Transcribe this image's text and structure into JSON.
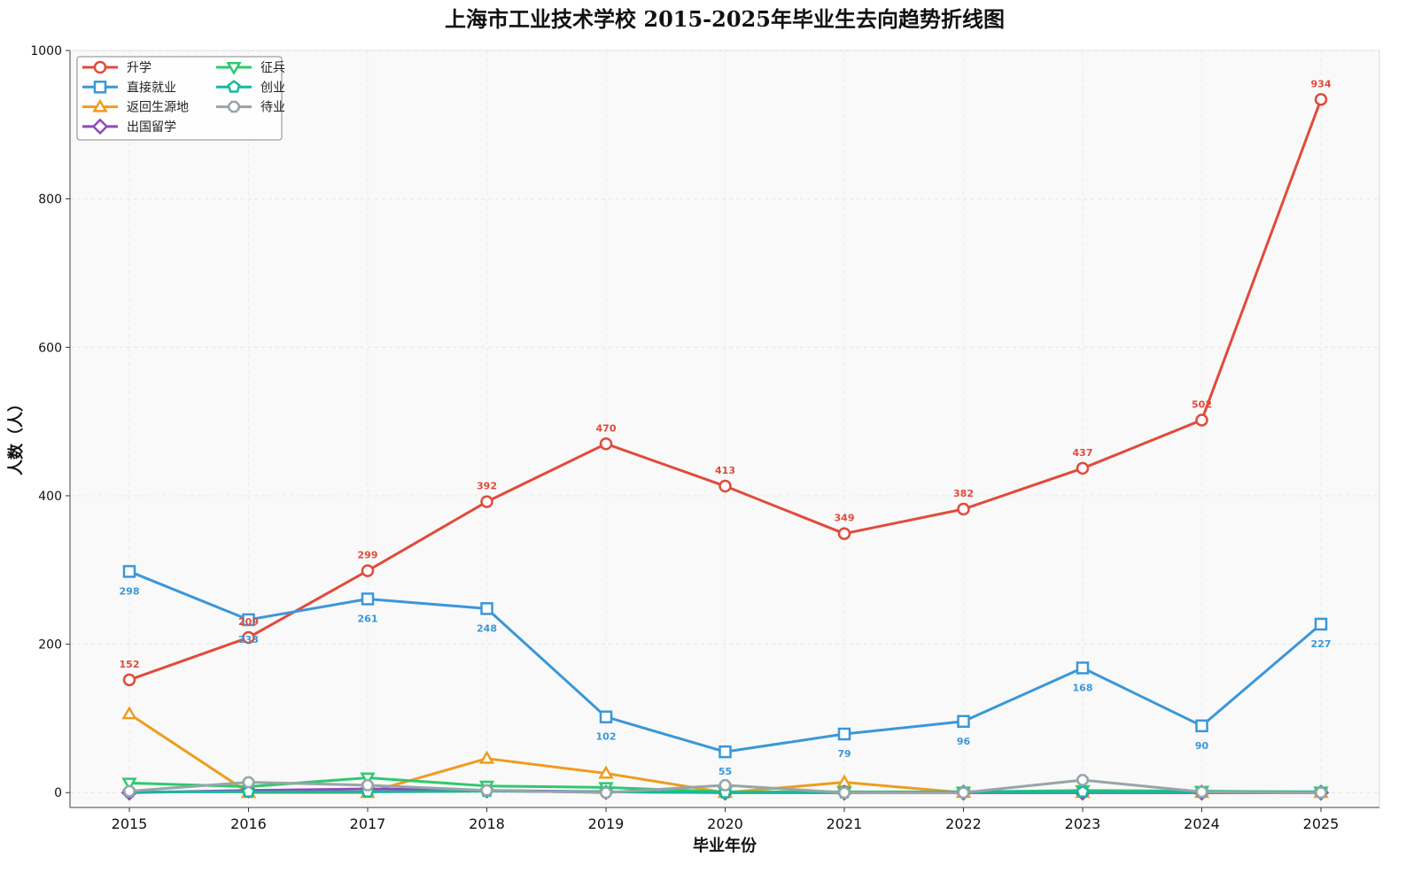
{
  "chart_data": {
    "type": "line",
    "title": "上海市工业技术学校 2015-2025年毕业生去向趋势折线图",
    "xlabel": "毕业年份",
    "ylabel": "人数（人）",
    "x": [
      2015,
      2016,
      2017,
      2018,
      2019,
      2020,
      2021,
      2022,
      2023,
      2024,
      2025
    ],
    "ylim": [
      -20,
      1000
    ],
    "yticks": [
      0,
      200,
      400,
      600,
      800,
      1000
    ],
    "grid": true,
    "legend_position": "top-left",
    "series": [
      {
        "name": "升学",
        "color": "#e24a3b",
        "marker": "circle",
        "values": [
          152,
          209,
          299,
          392,
          470,
          413,
          349,
          382,
          437,
          502,
          934
        ],
        "labels": [
          "152",
          "209",
          "299",
          "392",
          "470",
          "413",
          "349",
          "382",
          "437",
          "502",
          "934"
        ],
        "label_position": "above"
      },
      {
        "name": "直接就业",
        "color": "#3a97d9",
        "marker": "square",
        "values": [
          298,
          233,
          261,
          248,
          102,
          55,
          79,
          96,
          168,
          90,
          227
        ],
        "labels": [
          "298",
          "233",
          "261",
          "248",
          "102",
          "55",
          "79",
          "96",
          "168",
          "90",
          "227"
        ],
        "label_position": "below"
      },
      {
        "name": "返回生源地",
        "color": "#ef9c1f",
        "marker": "triangle-up",
        "values": [
          106,
          0,
          0,
          46,
          26,
          0,
          14,
          0,
          0,
          0,
          0
        ]
      },
      {
        "name": "出国留学",
        "color": "#8e4ab8",
        "marker": "diamond",
        "values": [
          0,
          3,
          5,
          3,
          1,
          0,
          0,
          0,
          0,
          0,
          0
        ]
      },
      {
        "name": "征兵",
        "color": "#2ec96f",
        "marker": "triangle-down",
        "values": [
          13,
          8,
          20,
          9,
          7,
          1,
          1,
          1,
          3,
          2,
          1
        ]
      },
      {
        "name": "创业",
        "color": "#17b89c",
        "marker": "pentagon",
        "values": [
          1,
          1,
          1,
          2,
          1,
          0,
          0,
          1,
          1,
          1,
          1
        ]
      },
      {
        "name": "待业",
        "color": "#98a4a8",
        "marker": "octagon",
        "values": [
          2,
          14,
          10,
          3,
          0,
          10,
          0,
          0,
          17,
          1,
          0
        ]
      }
    ]
  }
}
